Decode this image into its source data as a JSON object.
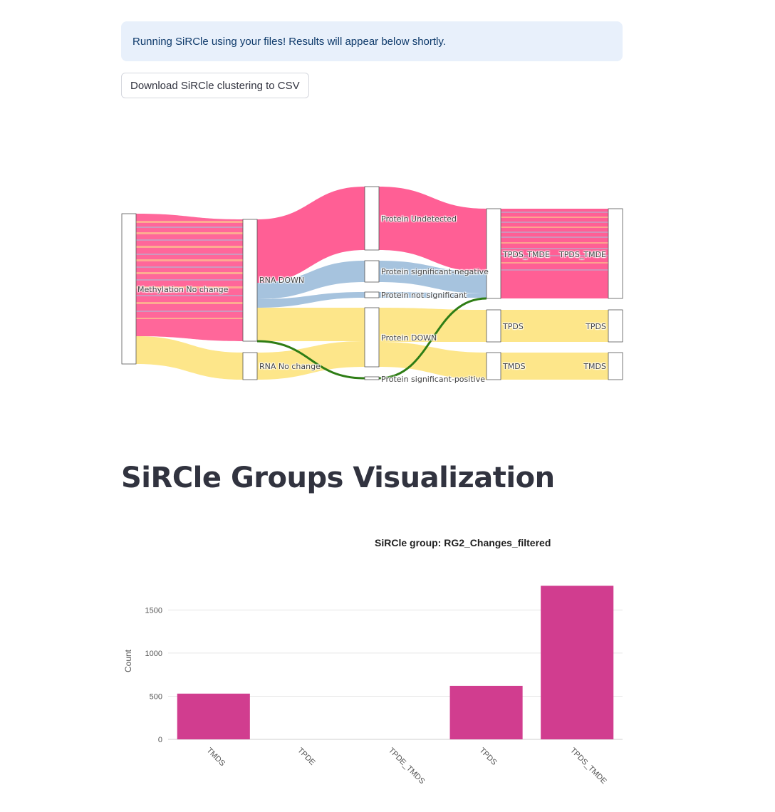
{
  "info_message": "Running SiRCle using your files! Results will appear below shortly.",
  "download_button": "Download SiRCle clustering to CSV",
  "sankey": {
    "columns": [
      [
        {
          "id": "meth_nochange",
          "label": "Methylation No change"
        }
      ],
      [
        {
          "id": "rna_down",
          "label": "RNA DOWN"
        },
        {
          "id": "rna_nochange",
          "label": "RNA No change"
        }
      ],
      [
        {
          "id": "prot_undetected",
          "label": "Protein Undetected"
        },
        {
          "id": "prot_signeg",
          "label": "Protein significant-negative"
        },
        {
          "id": "prot_notsig",
          "label": "Protein not significant"
        },
        {
          "id": "prot_down",
          "label": "Protein DOWN"
        },
        {
          "id": "prot_sigpos",
          "label": "Protein significant-positive"
        }
      ],
      [
        {
          "id": "g_tpds_tmde",
          "label": "TPDS_TMDE"
        },
        {
          "id": "g_tpds",
          "label": "TPDS"
        },
        {
          "id": "g_tmds",
          "label": "TMDS"
        }
      ],
      [
        {
          "id": "r_tpds_tmde",
          "label": "TPDS_TMDE"
        },
        {
          "id": "r_tpds",
          "label": "TPDS"
        },
        {
          "id": "r_tmds",
          "label": "TMDS"
        }
      ]
    ],
    "colors": {
      "pink": "#ff5f95",
      "blue": "#a6c3de",
      "yellow": "#fde68a",
      "green": "#2e7d15"
    }
  },
  "section_title": "SiRCle Groups Visualization",
  "chart_data": {
    "type": "bar",
    "title": "SiRCle group: RG2_Changes_filtered",
    "xlabel": "",
    "ylabel": "Count",
    "categories": [
      "TMDS",
      "TPDE",
      "TPDE_TMDS",
      "TPDS",
      "TPDS_TMDE"
    ],
    "values": [
      530,
      0,
      0,
      620,
      1780
    ],
    "ylim": [
      0,
      1800
    ],
    "yticks": [
      0,
      500,
      1000,
      1500
    ],
    "bar_color": "#d13d8f",
    "grid": true
  }
}
